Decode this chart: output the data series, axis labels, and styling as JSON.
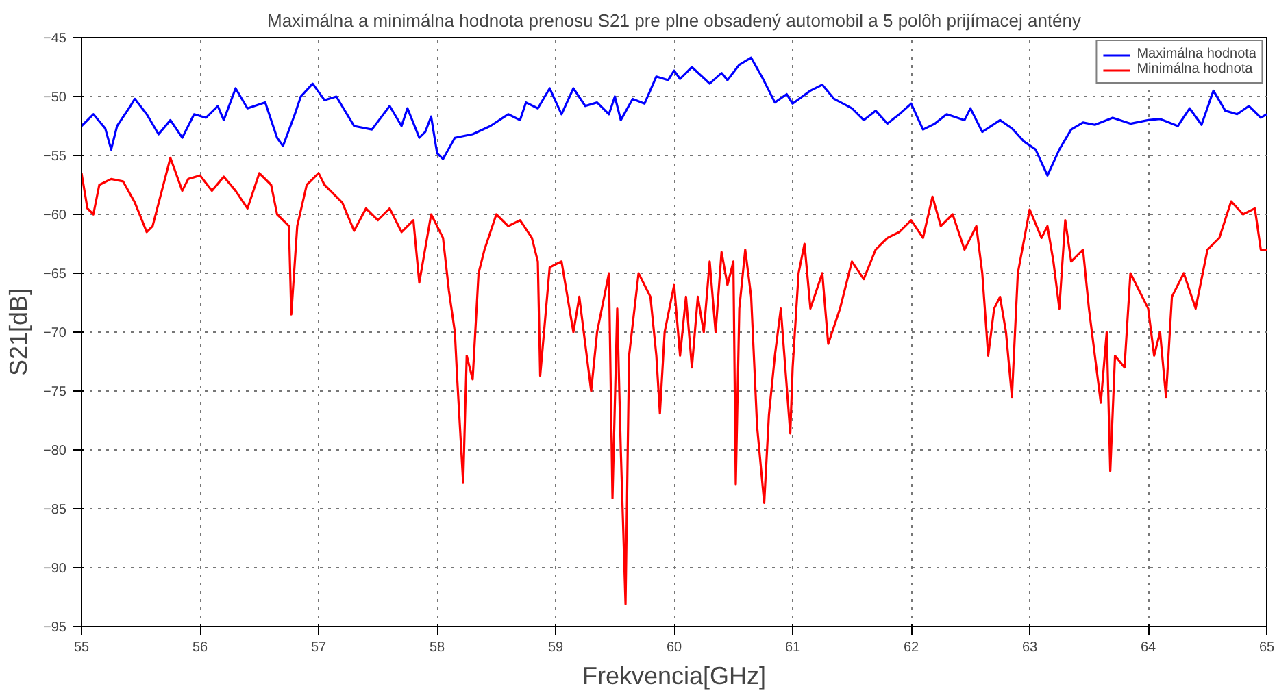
{
  "chart_data": {
    "type": "line",
    "title": "Maximálna a minimálna hodnota prenosu S21 pre plne obsadený automobil a 5 polôh prijímacej antény",
    "xlabel": "Frekvencia[GHz]",
    "ylabel": "S21[dB]",
    "xlim": [
      55,
      65
    ],
    "ylim": [
      -95,
      -45
    ],
    "xticks": [
      55,
      56,
      57,
      58,
      59,
      60,
      61,
      62,
      63,
      64,
      65
    ],
    "yticks": [
      -95,
      -90,
      -85,
      -80,
      -75,
      -70,
      -65,
      -60,
      -55,
      -50,
      -45
    ],
    "grid": true,
    "legend": "top right",
    "line_style": "solid",
    "marker": "none",
    "series": [
      {
        "name": "Maximálna hodnota",
        "color": "#0000ff",
        "x": [
          55.0,
          55.1,
          55.2,
          55.25,
          55.3,
          55.4,
          55.45,
          55.55,
          55.65,
          55.75,
          55.85,
          55.95,
          56.05,
          56.15,
          56.2,
          56.3,
          56.4,
          56.55,
          56.65,
          56.7,
          56.8,
          56.85,
          56.95,
          57.05,
          57.15,
          57.3,
          57.45,
          57.6,
          57.7,
          57.75,
          57.85,
          57.9,
          57.95,
          58.0,
          58.05,
          58.15,
          58.3,
          58.45,
          58.6,
          58.7,
          58.75,
          58.85,
          58.95,
          59.05,
          59.15,
          59.25,
          59.35,
          59.45,
          59.5,
          59.55,
          59.65,
          59.75,
          59.85,
          59.95,
          60.0,
          60.05,
          60.15,
          60.3,
          60.4,
          60.45,
          60.55,
          60.65,
          60.75,
          60.85,
          60.95,
          61.0,
          61.15,
          61.25,
          61.35,
          61.5,
          61.6,
          61.7,
          61.8,
          61.9,
          62.0,
          62.1,
          62.2,
          62.3,
          62.45,
          62.5,
          62.6,
          62.75,
          62.85,
          62.95,
          63.05,
          63.15,
          63.25,
          63.35,
          63.45,
          63.55,
          63.7,
          63.85,
          64.0,
          64.1,
          64.25,
          64.35,
          64.45,
          64.55,
          64.65,
          64.75,
          64.85,
          64.95,
          65.0
        ],
        "values": [
          -52.5,
          -51.5,
          -52.7,
          -54.5,
          -52.5,
          -51,
          -50.2,
          -51.5,
          -53.2,
          -52,
          -53.5,
          -51.5,
          -51.8,
          -50.8,
          -52,
          -49.3,
          -51,
          -50.5,
          -53.5,
          -54.2,
          -51.5,
          -50,
          -48.9,
          -50.3,
          -50,
          -52.5,
          -52.8,
          -50.8,
          -52.5,
          -51,
          -53.5,
          -53,
          -51.7,
          -54.8,
          -55.3,
          -53.5,
          -53.2,
          -52.5,
          -51.5,
          -52,
          -50.5,
          -51,
          -49.3,
          -51.5,
          -49.3,
          -50.8,
          -50.5,
          -51.5,
          -50,
          -52,
          -50.2,
          -50.6,
          -48.3,
          -48.6,
          -47.8,
          -48.5,
          -47.5,
          -48.9,
          -48,
          -48.6,
          -47.3,
          -46.7,
          -48.5,
          -50.5,
          -49.8,
          -50.6,
          -49.5,
          -49,
          -50.2,
          -51,
          -52,
          -51.2,
          -52.3,
          -51.5,
          -50.6,
          -52.8,
          -52.3,
          -51.5,
          -52,
          -51,
          -53,
          -52,
          -52.7,
          -53.8,
          -54.5,
          -56.7,
          -54.5,
          -52.8,
          -52.2,
          -52.4,
          -51.8,
          -52.3,
          -52,
          -51.9,
          -52.5,
          -51,
          -52.4,
          -49.5,
          -51.2,
          -51.5,
          -50.8,
          -51.8,
          -51.5
        ]
      },
      {
        "name": "Minimálna hodnota",
        "color": "#ff0000",
        "x": [
          55.0,
          55.05,
          55.1,
          55.15,
          55.25,
          55.35,
          55.45,
          55.55,
          55.6,
          55.75,
          55.85,
          55.9,
          56.0,
          56.1,
          56.2,
          56.3,
          56.4,
          56.5,
          56.6,
          56.65,
          56.75,
          56.77,
          56.82,
          56.9,
          57.0,
          57.05,
          57.2,
          57.3,
          57.4,
          57.5,
          57.6,
          57.7,
          57.8,
          57.85,
          57.95,
          58.05,
          58.1,
          58.15,
          58.17,
          58.22,
          58.25,
          58.3,
          58.35,
          58.4,
          58.5,
          58.6,
          58.7,
          58.8,
          58.85,
          58.87,
          58.95,
          59.05,
          59.15,
          59.2,
          59.3,
          59.35,
          59.45,
          59.48,
          59.52,
          59.55,
          59.59,
          59.62,
          59.7,
          59.8,
          59.85,
          59.88,
          59.92,
          60.0,
          60.05,
          60.1,
          60.15,
          60.2,
          60.25,
          60.3,
          60.35,
          60.4,
          60.45,
          60.5,
          60.52,
          60.55,
          60.6,
          60.65,
          60.7,
          60.76,
          60.8,
          60.85,
          60.9,
          60.98,
          61.0,
          61.05,
          61.1,
          61.15,
          61.25,
          61.3,
          61.4,
          61.45,
          61.5,
          61.6,
          61.7,
          61.8,
          61.9,
          62.0,
          62.1,
          62.18,
          62.25,
          62.35,
          62.45,
          62.55,
          62.6,
          62.65,
          62.7,
          62.75,
          62.8,
          62.85,
          62.9,
          63.0,
          63.1,
          63.15,
          63.2,
          63.25,
          63.3,
          63.35,
          63.45,
          63.5,
          63.55,
          63.6,
          63.65,
          63.68,
          63.72,
          63.8,
          63.85,
          63.9,
          64.0,
          64.05,
          64.1,
          64.15,
          64.2,
          64.3,
          64.4,
          64.5,
          64.6,
          64.7,
          64.8,
          64.9,
          64.95,
          65.0
        ],
        "values": [
          -56.5,
          -59.5,
          -60,
          -57.5,
          -57,
          -57.2,
          -59,
          -61.5,
          -61,
          -55.2,
          -58,
          -57,
          -56.7,
          -58,
          -56.8,
          -58,
          -59.5,
          -56.5,
          -57.5,
          -60,
          -61,
          -68.5,
          -61,
          -57.5,
          -56.5,
          -57.5,
          -59,
          -61.4,
          -59.5,
          -60.5,
          -59.5,
          -61.5,
          -60.5,
          -65.8,
          -60,
          -62,
          -66.5,
          -70,
          -74,
          -82.8,
          -72,
          -74,
          -65,
          -63,
          -60,
          -61,
          -60.5,
          -62,
          -64,
          -73.7,
          -64.5,
          -64,
          -70,
          -67,
          -75,
          -70,
          -65,
          -84.1,
          -68,
          -80,
          -93.1,
          -72,
          -65,
          -67,
          -72,
          -76.9,
          -70,
          -66,
          -72,
          -67,
          -73,
          -67,
          -70,
          -64,
          -70,
          -63.2,
          -66,
          -64,
          -82.9,
          -68,
          -63,
          -67,
          -78,
          -84.5,
          -77,
          -72,
          -68,
          -78.6,
          -73,
          -65,
          -62.5,
          -68,
          -65,
          -71,
          -68,
          -66,
          -64,
          -65.5,
          -63,
          -62,
          -61.5,
          -60.5,
          -62,
          -58.5,
          -61,
          -60,
          -63,
          -61,
          -65,
          -72,
          -68,
          -67,
          -70,
          -75.5,
          -65,
          -59.6,
          -62,
          -61,
          -64,
          -68,
          -60.5,
          -64,
          -63,
          -68,
          -72,
          -76,
          -70,
          -81.8,
          -72,
          -73,
          -65,
          -66,
          -68,
          -72,
          -70,
          -75.5,
          -67,
          -65,
          -68,
          -63,
          -62,
          -58.9,
          -60,
          -59.5,
          -63,
          -63
        ]
      }
    ]
  }
}
